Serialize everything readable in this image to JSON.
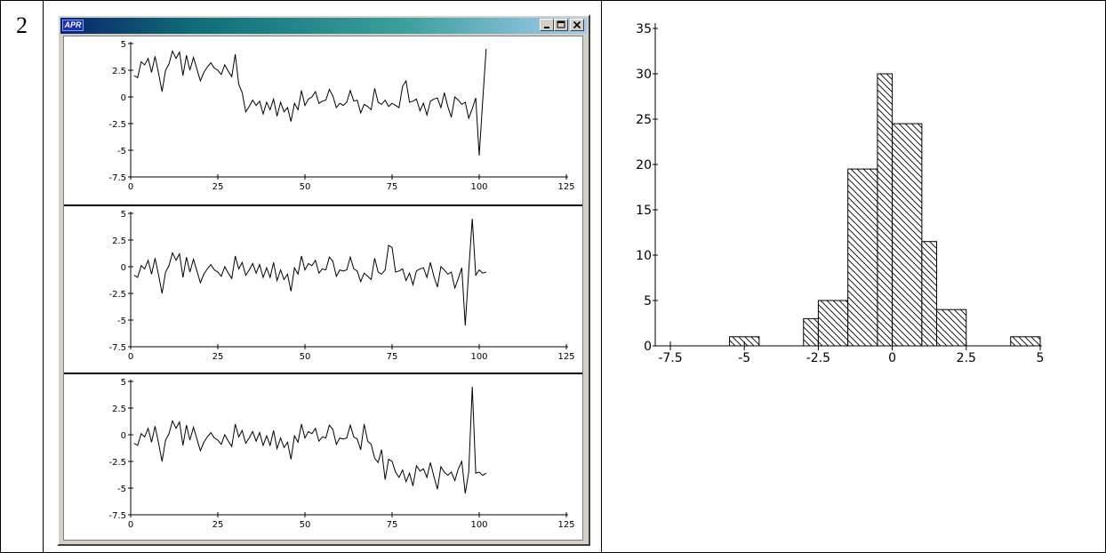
{
  "row_number": "2",
  "window": {
    "app_icon": "APR",
    "buttons": [
      "minimize",
      "maximize",
      "close"
    ]
  },
  "line_x_ticks": [
    "0",
    "25",
    "50",
    "75",
    "100",
    "125"
  ],
  "line_y_ticks": [
    "5",
    "2.5",
    "0",
    "-2.5",
    "-5",
    "-7.5"
  ],
  "hist_x_ticks": [
    "-7.5",
    "-5",
    "-2.5",
    "0",
    "2.5",
    "5"
  ],
  "hist_y_ticks": [
    "35",
    "30",
    "25",
    "20",
    "15",
    "10",
    "5",
    "0"
  ],
  "chart_data": [
    {
      "type": "line",
      "xlim": [
        0,
        125
      ],
      "ylim": [
        -7.5,
        5
      ],
      "series": [
        {
          "x": [
            1,
            2,
            3,
            4,
            5,
            6,
            7,
            8,
            9,
            10,
            11,
            12,
            13,
            14,
            15,
            16,
            17,
            18,
            19,
            20,
            21,
            22,
            23,
            24,
            25,
            26,
            27,
            28,
            29,
            30,
            31,
            32,
            33,
            34,
            35,
            36,
            37,
            38,
            39,
            40,
            41,
            42,
            43,
            44,
            45,
            46,
            47,
            48,
            49,
            50,
            51,
            52,
            53,
            54,
            55,
            56,
            57,
            58,
            59,
            60,
            61,
            62,
            63,
            64,
            65,
            66,
            67,
            68,
            69,
            70,
            71,
            72,
            73,
            74,
            75,
            76,
            77,
            78,
            79,
            80,
            81,
            82,
            83,
            84,
            85,
            86,
            87,
            88,
            89,
            90,
            91,
            92,
            93,
            94,
            95,
            96,
            97,
            98,
            99,
            100,
            101,
            102
          ],
          "values": [
            2.0,
            1.8,
            3.3,
            3.0,
            3.6,
            2.3,
            3.8,
            2.2,
            0.5,
            2.5,
            3.1,
            4.3,
            3.6,
            4.2,
            2.0,
            3.9,
            2.5,
            3.7,
            2.6,
            1.5,
            2.3,
            2.8,
            3.2,
            2.7,
            2.5,
            2.1,
            3.0,
            2.4,
            1.9,
            4.0,
            1.2,
            0.4,
            -1.4,
            -0.9,
            -0.3,
            -0.8,
            -0.4,
            -1.6,
            -0.5,
            -1.2,
            -0.2,
            -1.8,
            -0.5,
            -1.4,
            -1.0,
            -2.3,
            -0.6,
            -1.2,
            0.6,
            -0.8,
            -0.2,
            0.0,
            0.5,
            -0.6,
            -0.4,
            -0.3,
            0.7,
            0.1,
            -1.0,
            -0.6,
            -0.8,
            -0.5,
            0.6,
            -0.4,
            -0.3,
            -1.5,
            -0.7,
            -0.9,
            -1.2,
            0.8,
            -0.5,
            -0.7,
            -0.3,
            -0.9,
            -0.6,
            -0.8,
            -1.0,
            1.0,
            1.5,
            -0.5,
            -0.4,
            -0.2,
            -1.3,
            -0.6,
            -1.7,
            -0.4,
            -0.2,
            -0.1,
            -1.0,
            0.4,
            -0.9,
            -1.9,
            0.0,
            -0.3,
            -0.7,
            -0.5,
            -2.0,
            -1.1,
            -0.1,
            -5.5,
            -0.4,
            4.5
          ]
        },
        {
          "x": [
            1,
            2,
            3,
            4,
            5,
            6,
            7,
            8,
            9,
            10,
            11,
            12,
            13,
            14,
            15,
            16,
            17,
            18,
            19,
            20,
            21,
            22,
            23,
            24,
            25,
            26,
            27,
            28,
            29,
            30,
            31,
            32,
            33,
            34,
            35,
            36,
            37,
            38,
            39,
            40,
            41,
            42,
            43,
            44,
            45,
            46,
            47,
            48,
            49,
            50,
            51,
            52,
            53,
            54,
            55,
            56,
            57,
            58,
            59,
            60,
            61,
            62,
            63,
            64,
            65,
            66,
            67,
            68,
            69,
            70,
            71,
            72,
            73,
            74,
            75,
            76,
            77,
            78,
            79,
            80,
            81,
            82,
            83,
            84,
            85,
            86,
            87,
            88,
            89,
            90,
            91,
            92,
            93,
            94,
            95,
            96,
            97,
            98,
            99,
            100,
            101,
            102
          ],
          "values": [
            -0.8,
            -1.0,
            0.1,
            -0.2,
            0.6,
            -0.7,
            0.8,
            -0.8,
            -2.5,
            -0.5,
            0.1,
            1.3,
            0.6,
            1.2,
            -1.0,
            0.9,
            -0.5,
            0.7,
            -0.4,
            -1.5,
            -0.7,
            -0.2,
            0.2,
            -0.3,
            -0.5,
            -0.9,
            0.0,
            -0.6,
            -1.1,
            1.0,
            -0.2,
            0.4,
            -0.8,
            -0.3,
            0.3,
            -0.6,
            0.2,
            -1.0,
            -0.1,
            -1.0,
            0.4,
            -1.3,
            -0.3,
            -1.2,
            -0.7,
            -2.3,
            -0.1,
            -0.7,
            1.0,
            -0.3,
            0.3,
            0.1,
            0.6,
            -0.6,
            -0.2,
            -0.3,
            0.9,
            0.5,
            -0.9,
            -0.3,
            -0.4,
            -0.3,
            0.9,
            -0.2,
            -0.4,
            -1.4,
            -0.6,
            -0.9,
            -1.2,
            0.8,
            -0.5,
            -0.7,
            -0.3,
            2.0,
            1.8,
            -0.5,
            -0.4,
            -0.2,
            -1.3,
            -0.6,
            -1.7,
            -0.4,
            -0.2,
            -0.1,
            -1.0,
            0.4,
            -0.9,
            -1.9,
            0.0,
            -0.3,
            -0.7,
            -0.5,
            -2.0,
            -1.1,
            -0.1,
            -5.5,
            -0.4,
            4.5,
            -0.8,
            -0.3,
            -0.6,
            -0.5
          ]
        },
        {
          "x": [
            1,
            2,
            3,
            4,
            5,
            6,
            7,
            8,
            9,
            10,
            11,
            12,
            13,
            14,
            15,
            16,
            17,
            18,
            19,
            20,
            21,
            22,
            23,
            24,
            25,
            26,
            27,
            28,
            29,
            30,
            31,
            32,
            33,
            34,
            35,
            36,
            37,
            38,
            39,
            40,
            41,
            42,
            43,
            44,
            45,
            46,
            47,
            48,
            49,
            50,
            51,
            52,
            53,
            54,
            55,
            56,
            57,
            58,
            59,
            60,
            61,
            62,
            63,
            64,
            65,
            66,
            67,
            68,
            69,
            70,
            71,
            72,
            73,
            74,
            75,
            76,
            77,
            78,
            79,
            80,
            81,
            82,
            83,
            84,
            85,
            86,
            87,
            88,
            89,
            90,
            91,
            92,
            93,
            94,
            95,
            96,
            97,
            98,
            99,
            100,
            101,
            102
          ],
          "values": [
            -0.8,
            -1.0,
            0.1,
            -0.2,
            0.6,
            -0.7,
            0.8,
            -0.8,
            -2.5,
            -0.5,
            0.1,
            1.3,
            0.6,
            1.2,
            -1.0,
            0.9,
            -0.5,
            0.7,
            -0.4,
            -1.5,
            -0.7,
            -0.2,
            0.2,
            -0.3,
            -0.5,
            -0.9,
            0.0,
            -0.6,
            -1.1,
            1.0,
            -0.2,
            0.4,
            -0.8,
            -0.3,
            0.3,
            -0.6,
            0.2,
            -1.0,
            -0.1,
            -1.0,
            0.4,
            -1.3,
            -0.3,
            -1.2,
            -0.7,
            -2.3,
            -0.1,
            -0.7,
            1.0,
            -0.3,
            0.3,
            0.1,
            0.6,
            -0.6,
            -0.2,
            -0.3,
            0.9,
            0.5,
            -0.9,
            -0.3,
            -0.4,
            -0.3,
            0.9,
            -0.2,
            -0.4,
            -1.4,
            1.0,
            -0.6,
            -0.9,
            -2.2,
            -2.6,
            -1.4,
            -4.2,
            -2.3,
            -2.5,
            -3.5,
            -4.0,
            -3.3,
            -4.4,
            -3.6,
            -4.8,
            -2.9,
            -3.4,
            -3.2,
            -4.0,
            -2.6,
            -3.9,
            -5.1,
            -3.0,
            -3.5,
            -3.8,
            -3.5,
            -4.3,
            -3.2,
            -2.5,
            -5.5,
            -3.5,
            4.5,
            -3.6,
            -3.5,
            -3.8,
            -3.6
          ]
        }
      ]
    },
    {
      "type": "bar",
      "xlim": [
        -7.5,
        5
      ],
      "ylim": [
        0,
        35
      ],
      "bins": [
        {
          "from": -5.5,
          "to": -4.5,
          "count": 1
        },
        {
          "from": -3.0,
          "to": -2.5,
          "count": 3
        },
        {
          "from": -2.5,
          "to": -1.5,
          "count": 5
        },
        {
          "from": -1.5,
          "to": -0.5,
          "count": 19.5
        },
        {
          "from": -0.5,
          "to": 0.0,
          "count": 30
        },
        {
          "from": 0.0,
          "to": 1.0,
          "count": 24.5
        },
        {
          "from": 1.0,
          "to": 1.5,
          "count": 11.5
        },
        {
          "from": 1.5,
          "to": 2.5,
          "count": 4
        },
        {
          "from": 4.0,
          "to": 5.0,
          "count": 1
        }
      ]
    }
  ]
}
